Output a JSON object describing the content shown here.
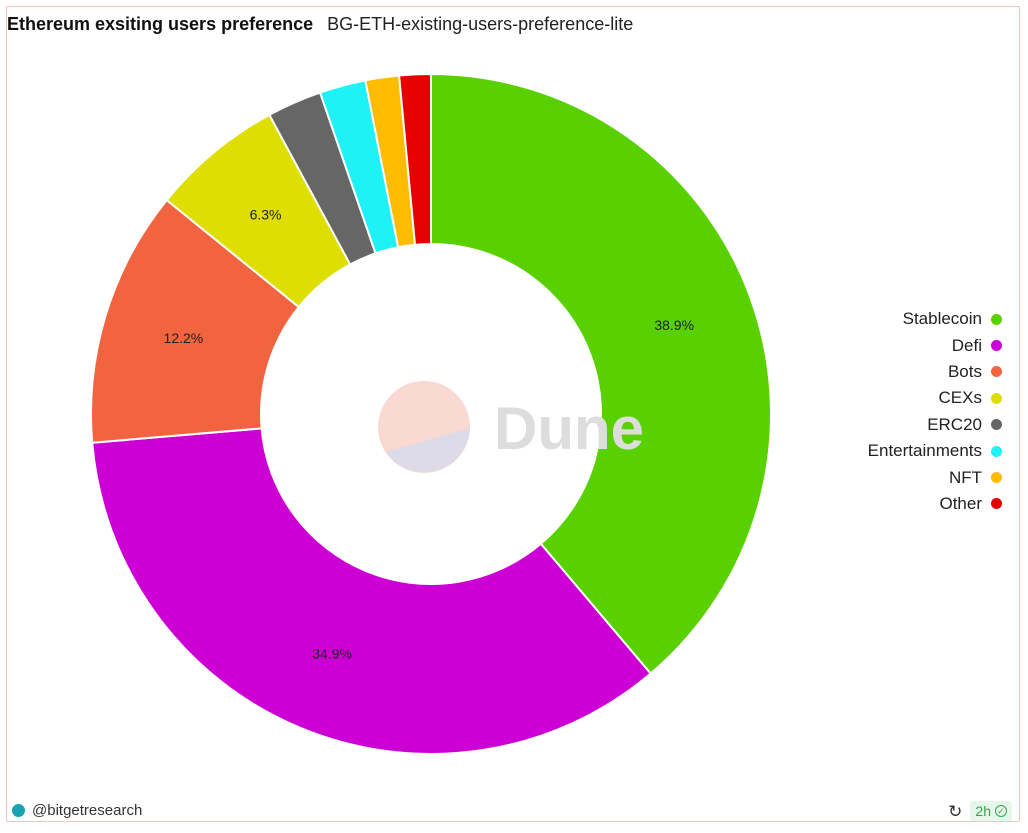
{
  "header": {
    "title": "Ethereum exsiting users preference",
    "subtitle": "BG-ETH-existing-users-preference-lite"
  },
  "chart_data": {
    "type": "pie",
    "donut": true,
    "legend_position": "right",
    "slices": [
      {
        "label": "Stablecoin",
        "value": 38.9,
        "display": "38.9%",
        "color": "#59d100"
      },
      {
        "label": "Defi",
        "value": 34.9,
        "display": "34.9%",
        "color": "#cc00d4"
      },
      {
        "label": "Bots",
        "value": 12.2,
        "display": "12.2%",
        "color": "#f26440"
      },
      {
        "label": "CEXs",
        "value": 6.3,
        "display": "6.3%",
        "color": "#dede00"
      },
      {
        "label": "ERC20",
        "value": 2.6,
        "display": "",
        "color": "#666666"
      },
      {
        "label": "Entertainments",
        "value": 2.2,
        "display": "",
        "color": "#1ef2f7"
      },
      {
        "label": "NFT",
        "value": 1.6,
        "display": "",
        "color": "#ffbb00"
      },
      {
        "label": "Other",
        "value": 1.5,
        "display": "",
        "color": "#e60000"
      }
    ]
  },
  "watermark": {
    "text": "Dune"
  },
  "footer": {
    "user": "@bitgetresearch",
    "refresh_icon": "refresh-icon",
    "age": "2h",
    "status_icon": "check-circle-icon"
  }
}
